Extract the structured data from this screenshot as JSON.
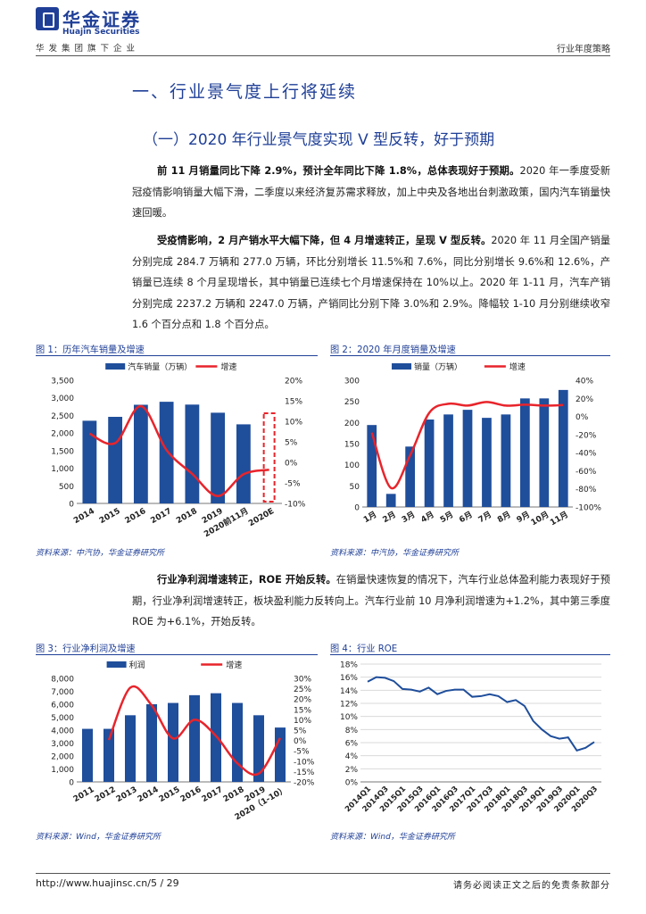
{
  "header": {
    "logo_cn": "华金证券",
    "logo_en": "Huajin Securities",
    "subtitle": "华发集团旗下企业",
    "report_type": "行业年度策略"
  },
  "section": {
    "h1": "一、行业景气度上行将延续",
    "h2": "（一）2020 年行业景气度实现 V 型反转，好于预期"
  },
  "paragraphs": {
    "p1_bold": "前 11 月销量同比下降 2.9%，预计全年同比下降 1.8%，总体表现好于预期。",
    "p1_text": "2020 年一季度受新冠疫情影响销量大幅下滑，二季度以来经济复苏需求释放，加上中央及各地出台刺激政策，国内汽车销量快速回暖。",
    "p2_bold": "受疫情影响，2 月产销水平大幅下降，但 4 月增速转正，呈现 V 型反转。",
    "p2_text": "2020 年 11 月全国产销量分别完成 284.7 万辆和 277.0 万辆，环比分别增长 11.5%和 7.6%，同比分别增长 9.6%和 12.6%，产销量已连续 8 个月呈现增长，其中销量已连续七个月增速保持在 10%以上。2020 年 1-11 月，汽车产销分别完成 2237.2 万辆和 2247.0 万辆，产销同比分别下降 3.0%和 2.9%。降幅较 1-10 月分别继续收窄 1.6 个百分点和 1.8 个百分点。",
    "p3_bold": "行业净利润增速转正，ROE 开始反转。",
    "p3_text": "在销量快速恢复的情况下，汽车行业总体盈利能力表现好于预期，行业净利润增速转正，板块盈利能力反转向上。汽车行业前 10 月净利润增速为+1.2%，其中第三季度 ROE 为+6.1%，开始反转。"
  },
  "figures": {
    "fig1_title": "图 1：历年汽车销量及增速",
    "fig2_title": "图 2：2020 年月度销量及增速",
    "fig3_title": "图 3：行业净利润及增速",
    "fig4_title": "图 4：行业 ROE",
    "src1": "资料来源：中汽协，华金证券研究所",
    "src2": "资料来源：中汽协，华金证券研究所",
    "src3": "资料来源：Wind，华金证券研究所",
    "src4": "资料来源：Wind，华金证券研究所"
  },
  "chart_data": [
    {
      "type": "bar",
      "categories": [
        "2014",
        "2015",
        "2016",
        "2017",
        "2018",
        "2019",
        "2020前11月",
        "2020E"
      ],
      "series": [
        {
          "name": "汽车销量（万辆）",
          "type": "bar",
          "axis": "left",
          "color": "#1f4e9b",
          "values": [
            2349,
            2460,
            2803,
            2888,
            2808,
            2577,
            2247,
            null
          ]
        },
        {
          "name": "增速",
          "type": "line",
          "axis": "right",
          "color": "#e8242b",
          "values": [
            7.0,
            4.7,
            13.7,
            3.0,
            -2.8,
            -8.2,
            -2.9,
            -1.8
          ]
        }
      ],
      "ylim": [
        0,
        3500
      ],
      "y2lim": [
        -10,
        20
      ],
      "yticks": [
        "0",
        "500",
        "1,000",
        "1,500",
        "2,000",
        "2,500",
        "3,000",
        "3,500"
      ],
      "y2ticks": [
        "-10%",
        "-5%",
        "0%",
        "5%",
        "10%",
        "15%",
        "20%"
      ],
      "legend": "top",
      "highlight": "dashed red box around 2020E"
    },
    {
      "type": "bar",
      "categories": [
        "1月",
        "2月",
        "3月",
        "4月",
        "5月",
        "6月",
        "7月",
        "8月",
        "9月",
        "10月",
        "11月"
      ],
      "series": [
        {
          "name": "销量（万辆）",
          "type": "bar",
          "axis": "left",
          "color": "#1f4e9b",
          "values": [
            194,
            31,
            143,
            207,
            219,
            230,
            211,
            219,
            257,
            257,
            277
          ]
        },
        {
          "name": "增速",
          "type": "line",
          "axis": "right",
          "color": "#e8242b",
          "values": [
            -18,
            -79,
            -43,
            4,
            14,
            12,
            16,
            12,
            13,
            12,
            12.6
          ]
        }
      ],
      "ylim": [
        0,
        300
      ],
      "y2lim": [
        -100,
        40
      ],
      "yticks": [
        "0",
        "50",
        "100",
        "150",
        "200",
        "250",
        "300"
      ],
      "y2ticks": [
        "-100%",
        "-80%",
        "-60%",
        "-40%",
        "-20%",
        "0%",
        "20%",
        "40%"
      ],
      "legend": "top"
    },
    {
      "type": "bar",
      "categories": [
        "2011",
        "2012",
        "2013",
        "2014",
        "2015",
        "2016",
        "2017",
        "2018",
        "2019",
        "2020（1-10）"
      ],
      "series": [
        {
          "name": "利润",
          "type": "bar",
          "axis": "left",
          "color": "#1f4e9b",
          "values": [
            4100,
            4100,
            5150,
            6000,
            6100,
            6700,
            6850,
            6100,
            5150,
            4200
          ]
        },
        {
          "name": "增速",
          "type": "line",
          "axis": "right",
          "color": "#e8242b",
          "values": [
            null,
            0.2,
            25.5,
            17.0,
            1.0,
            10.0,
            2.2,
            -11.0,
            -16.0,
            1.2
          ]
        }
      ],
      "ylim": [
        0,
        8000
      ],
      "y2lim": [
        -20,
        30
      ],
      "yticks": [
        "0",
        "1,000",
        "2,000",
        "3,000",
        "4,000",
        "5,000",
        "6,000",
        "7,000",
        "8,000"
      ],
      "y2ticks": [
        "-20%",
        "-15%",
        "-10%",
        "-5%",
        "0%",
        "5%",
        "10%",
        "15%",
        "20%",
        "25%",
        "30%"
      ],
      "legend": "top"
    },
    {
      "type": "line",
      "x": [
        "2014Q1",
        "2014Q2",
        "2014Q3",
        "2014Q4",
        "2015Q1",
        "2015Q2",
        "2015Q3",
        "2015Q4",
        "2016Q1",
        "2016Q2",
        "2016Q3",
        "2016Q4",
        "2017Q1",
        "2017Q2",
        "2017Q3",
        "2017Q4",
        "2018Q1",
        "2018Q2",
        "2018Q3",
        "2018Q4",
        "2019Q1",
        "2019Q2",
        "2019Q3",
        "2019Q4",
        "2020Q1",
        "2020Q2",
        "2020Q3"
      ],
      "xticks": [
        "2014Q1",
        "2014Q3",
        "2015Q1",
        "2015Q3",
        "2016Q1",
        "2016Q3",
        "2017Q1",
        "2017Q3",
        "2018Q1",
        "2018Q3",
        "2019Q1",
        "2019Q3",
        "2020Q1",
        "2020Q3"
      ],
      "series": [
        {
          "name": "ROE",
          "color": "#1f4e9b",
          "values": [
            15.3,
            16.0,
            15.9,
            15.4,
            14.2,
            14.1,
            13.8,
            14.4,
            13.4,
            13.9,
            14.1,
            14.1,
            13.0,
            13.1,
            13.4,
            13.1,
            12.2,
            12.5,
            11.6,
            9.3,
            8.0,
            7.0,
            6.6,
            6.8,
            4.8,
            5.2,
            6.1
          ]
        }
      ],
      "ylim": [
        0,
        18
      ],
      "yticks": [
        "0%",
        "2%",
        "4%",
        "6%",
        "8%",
        "10%",
        "12%",
        "14%",
        "16%",
        "18%"
      ]
    }
  ],
  "footer": {
    "url": "http://www.huajinsc.cn/5 / 29",
    "disclaimer": "请务必阅读正文之后的免责条款部分"
  }
}
